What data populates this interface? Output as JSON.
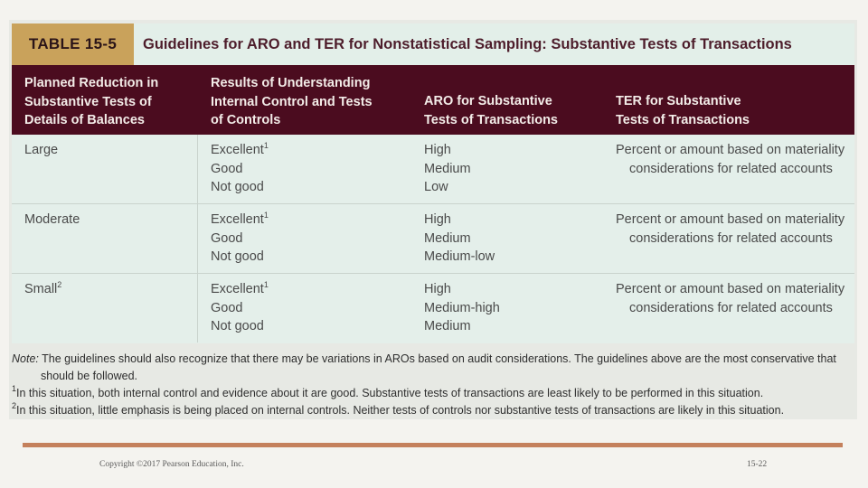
{
  "table": {
    "label": "TABLE 15-5",
    "title": "Guidelines for ARO and TER for Nonstatistical Sampling: Substantive Tests of Transactions",
    "headers": [
      [
        "Planned Reduction in",
        "Substantive Tests of",
        "Details of Balances"
      ],
      [
        "Results of Understanding",
        "Internal Control and Tests",
        "of Controls"
      ],
      [
        "ARO for Substantive",
        "Tests of Transactions"
      ],
      [
        "TER for Substantive",
        "Tests of Transactions"
      ]
    ],
    "rows": [
      {
        "reduction": "Large",
        "reduction_sup": "",
        "results": [
          "Excellent",
          "Good",
          "Not good"
        ],
        "results_sup": "1",
        "aro": [
          "High",
          "Medium",
          "Low"
        ],
        "ter": [
          "Percent or amount based on materiality",
          "considerations for related accounts"
        ]
      },
      {
        "reduction": "Moderate",
        "reduction_sup": "",
        "results": [
          "Excellent",
          "Good",
          "Not good"
        ],
        "results_sup": "1",
        "aro": [
          "High",
          "Medium",
          "Medium-low"
        ],
        "ter": [
          "Percent or amount based on materiality",
          "considerations for related accounts"
        ]
      },
      {
        "reduction": "Small",
        "reduction_sup": "2",
        "results": [
          "Excellent",
          "Good",
          "Not good"
        ],
        "results_sup": "1",
        "aro": [
          "High",
          "Medium-high",
          "Medium"
        ],
        "ter": [
          "Percent or amount based on materiality",
          "considerations for related accounts"
        ]
      }
    ]
  },
  "notes": {
    "label": "Note:",
    "note_line1": "The guidelines should also recognize that there may be variations in AROs based on audit considerations. The guidelines above are the most conservative that",
    "note_line2": "should be followed.",
    "fn1_mark": "1",
    "fn1_text": "In this situation, both internal control and evidence about it are good. Substantive tests of transactions are least likely to be performed in this situation.",
    "fn2_mark": "2",
    "fn2_text": "In this situation, little emphasis is being placed on internal controls. Neither tests of controls nor substantive tests of transactions are likely in this situation."
  },
  "footer": {
    "copyright": "Copyright ©2017 Pearson Education, Inc.",
    "slide_number": "15-22"
  },
  "colors": {
    "header_bg": "#4b0c1f",
    "label_tab": "#c9a25b",
    "title_text": "#4d1d2b",
    "body_bg": "#e4efea",
    "footer_rule": "#c4805c"
  }
}
